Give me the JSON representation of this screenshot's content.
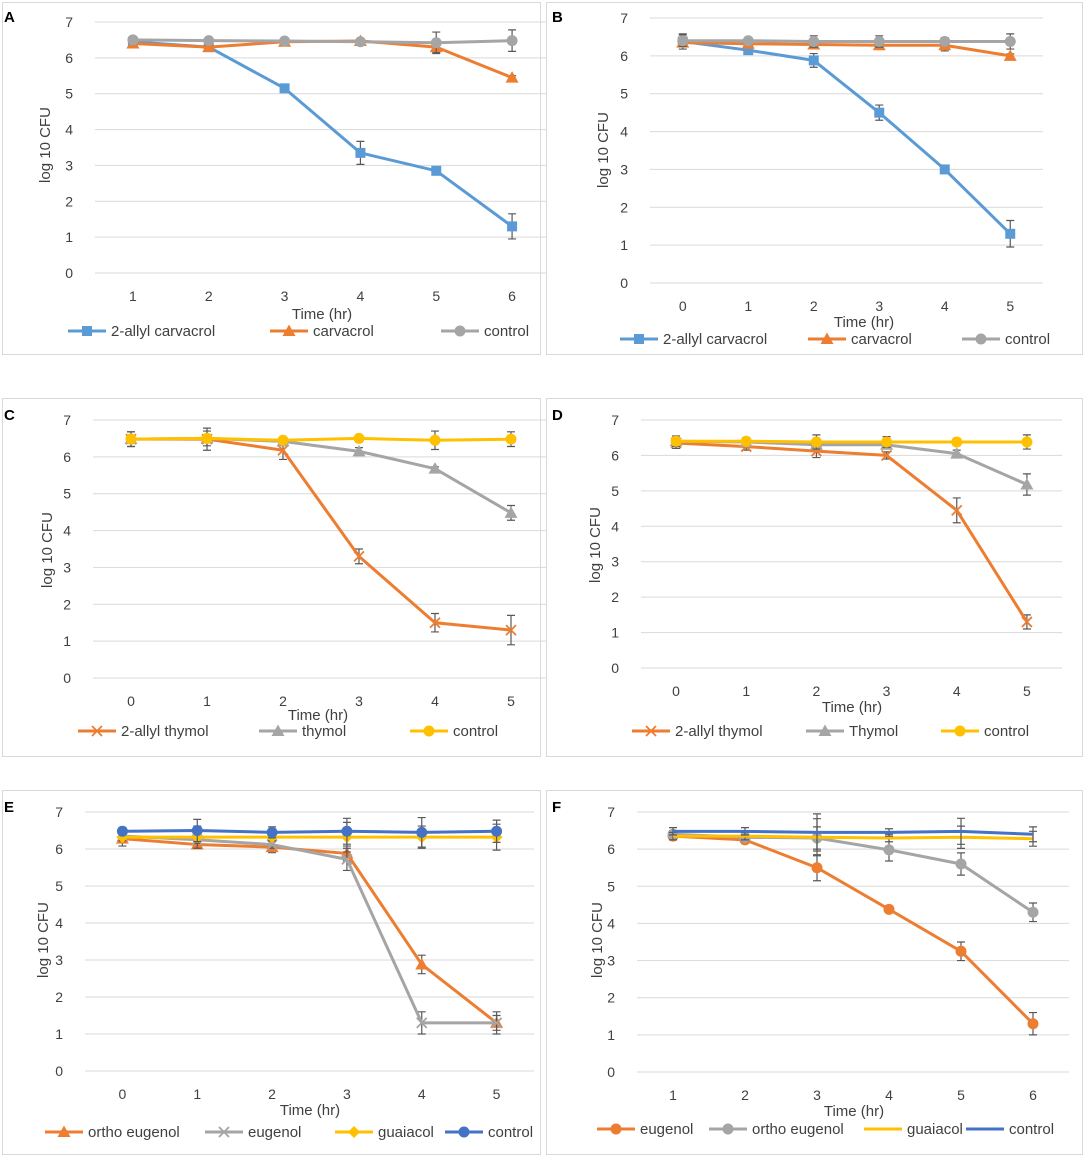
{
  "figure": {
    "panel_letters": [
      "A",
      "B",
      "C",
      "D",
      "E",
      "F"
    ]
  },
  "chart_data": [
    {
      "panel": "A",
      "type": "line",
      "xlabel": "Time (hr)",
      "ylabel": "log 10 CFU",
      "x": [
        1,
        2,
        3,
        4,
        5,
        6
      ],
      "x_tick_labels": [
        "1",
        "2",
        "3",
        "4",
        "5",
        "6"
      ],
      "ylim": [
        0,
        7
      ],
      "y_ticks": [
        0,
        1,
        2,
        3,
        4,
        5,
        6,
        7
      ],
      "grid": "horizontal",
      "legend_position": "bottom",
      "series": [
        {
          "name": "2-allyl carvacrol",
          "color": "#5B9BD5",
          "marker": "square",
          "values": [
            6.45,
            6.3,
            5.15,
            3.35,
            2.85,
            1.3
          ],
          "errors": [
            0.05,
            0.05,
            0.05,
            0.32,
            0.05,
            0.35
          ]
        },
        {
          "name": "carvacrol",
          "color": "#ED7D31",
          "marker": "triangle",
          "values": [
            6.4,
            6.3,
            6.45,
            6.47,
            6.3,
            5.45
          ],
          "errors": [
            0.05,
            0.05,
            0.05,
            0.05,
            0.15,
            0.05
          ]
        },
        {
          "name": "control",
          "color": "#A5A5A5",
          "marker": "circle",
          "values": [
            6.5,
            6.48,
            6.47,
            6.45,
            6.42,
            6.48
          ],
          "errors": [
            0.05,
            0.05,
            0.05,
            0.05,
            0.3,
            0.3
          ]
        }
      ]
    },
    {
      "panel": "B",
      "type": "line",
      "xlabel": "Time (hr)",
      "ylabel": "log 10 CFU",
      "x": [
        0,
        1,
        2,
        3,
        4,
        5
      ],
      "x_tick_labels": [
        "0",
        "1",
        "2",
        "3",
        "4",
        "5"
      ],
      "ylim": [
        0,
        7
      ],
      "y_ticks": [
        0,
        1,
        2,
        3,
        4,
        5,
        6,
        7
      ],
      "grid": "horizontal",
      "legend_position": "bottom",
      "series": [
        {
          "name": "2-allyl carvacrol",
          "color": "#5B9BD5",
          "marker": "square",
          "values": [
            6.38,
            6.15,
            5.88,
            4.5,
            3.0,
            1.3
          ],
          "errors": [
            0.2,
            0.05,
            0.18,
            0.2,
            0.1,
            0.35
          ]
        },
        {
          "name": "carvacrol",
          "color": "#ED7D31",
          "marker": "triangle",
          "values": [
            6.35,
            6.32,
            6.3,
            6.28,
            6.28,
            6.0
          ],
          "errors": [
            0.1,
            0.08,
            0.08,
            0.1,
            0.15,
            0.05
          ]
        },
        {
          "name": "control",
          "color": "#A5A5A5",
          "marker": "circle",
          "values": [
            6.4,
            6.4,
            6.38,
            6.38,
            6.38,
            6.38
          ],
          "errors": [
            0.15,
            0.08,
            0.15,
            0.15,
            0.1,
            0.2
          ]
        }
      ]
    },
    {
      "panel": "C",
      "type": "line",
      "xlabel": "Time (hr)",
      "ylabel": "log 10 CFU",
      "x": [
        0,
        1,
        2,
        3,
        4,
        5
      ],
      "x_tick_labels": [
        "0",
        "1",
        "2",
        "3",
        "4",
        "5"
      ],
      "ylim": [
        0,
        7
      ],
      "y_ticks": [
        0,
        1,
        2,
        3,
        4,
        5,
        6,
        7
      ],
      "grid": "horizontal",
      "legend_position": "bottom",
      "series": [
        {
          "name": "2-allyl thymol",
          "color": "#ED7D31",
          "marker": "x",
          "values": [
            6.48,
            6.48,
            6.18,
            3.3,
            1.5,
            1.3
          ],
          "errors": [
            0.2,
            0.3,
            0.25,
            0.2,
            0.25,
            0.4
          ]
        },
        {
          "name": "thymol",
          "color": "#A5A5A5",
          "marker": "triangle",
          "values": [
            6.48,
            6.5,
            6.42,
            6.15,
            5.68,
            4.48
          ],
          "errors": [
            0.05,
            0.05,
            0.05,
            0.1,
            0.05,
            0.2
          ]
        },
        {
          "name": "control",
          "color": "#FFC000",
          "marker": "circle",
          "values": [
            6.48,
            6.5,
            6.45,
            6.5,
            6.45,
            6.48
          ],
          "errors": [
            0.2,
            0.2,
            0.05,
            0.05,
            0.25,
            0.2
          ]
        }
      ]
    },
    {
      "panel": "D",
      "type": "line",
      "xlabel": "Time (hr)",
      "ylabel": "log 10 CFU",
      "x": [
        0,
        1,
        2,
        3,
        4,
        5
      ],
      "x_tick_labels": [
        "0",
        "1",
        "2",
        "3",
        "4",
        "5"
      ],
      "ylim": [
        0,
        7
      ],
      "y_ticks": [
        0,
        1,
        2,
        3,
        4,
        5,
        6,
        7
      ],
      "grid": "horizontal",
      "legend_position": "bottom",
      "series": [
        {
          "name": "2-allyl thymol",
          "color": "#ED7D31",
          "marker": "x",
          "values": [
            6.35,
            6.25,
            6.12,
            6.0,
            4.45,
            1.3
          ],
          "errors": [
            0.15,
            0.1,
            0.18,
            0.1,
            0.35,
            0.2
          ]
        },
        {
          "name": "Thymol",
          "color": "#A5A5A5",
          "marker": "triangle",
          "values": [
            6.4,
            6.38,
            6.3,
            6.3,
            6.05,
            5.18
          ],
          "errors": [
            0.1,
            0.1,
            0.1,
            0.1,
            0.1,
            0.3
          ]
        },
        {
          "name": "control",
          "color": "#FFC000",
          "marker": "circle",
          "values": [
            6.4,
            6.4,
            6.38,
            6.38,
            6.38,
            6.38
          ],
          "errors": [
            0.15,
            0.1,
            0.2,
            0.15,
            0.1,
            0.2
          ]
        }
      ]
    },
    {
      "panel": "E",
      "type": "line",
      "xlabel": "Time (hr)",
      "ylabel": "log 10 CFU",
      "x": [
        0,
        1,
        2,
        3,
        4,
        5
      ],
      "x_tick_labels": [
        "0",
        "1",
        "2",
        "3",
        "4",
        "5"
      ],
      "ylim": [
        0,
        7
      ],
      "y_ticks": [
        0,
        1,
        2,
        3,
        4,
        5,
        6,
        7
      ],
      "grid": "horizontal",
      "legend_position": "bottom",
      "series": [
        {
          "name": "ortho eugenol",
          "color": "#ED7D31",
          "marker": "triangle",
          "values": [
            6.28,
            6.12,
            6.05,
            5.88,
            2.88,
            1.3
          ],
          "errors": [
            0.2,
            0.1,
            0.15,
            0.2,
            0.25,
            0.2
          ]
        },
        {
          "name": "eugenol",
          "color": "#A5A5A5",
          "marker": "x",
          "values": [
            6.35,
            6.25,
            6.12,
            5.72,
            1.3,
            1.3
          ],
          "errors": [
            0.1,
            0.1,
            0.1,
            0.3,
            0.3,
            0.3
          ]
        },
        {
          "name": "guaiacol",
          "color": "#FFC000",
          "marker": "diamond",
          "values": [
            6.32,
            6.32,
            6.32,
            6.32,
            6.32,
            6.32
          ],
          "errors": [
            0.1,
            0.3,
            0.1,
            0.4,
            0.3,
            0.35
          ]
        },
        {
          "name": "control",
          "color": "#4472C4",
          "marker": "circle",
          "values": [
            6.48,
            6.5,
            6.45,
            6.48,
            6.45,
            6.48
          ],
          "errors": [
            0.1,
            0.3,
            0.15,
            0.35,
            0.4,
            0.3
          ]
        }
      ]
    },
    {
      "panel": "F",
      "type": "line",
      "xlabel": "Time (hr)",
      "ylabel": "log 10 CFU",
      "x": [
        1,
        2,
        3,
        4,
        5,
        6
      ],
      "x_tick_labels": [
        "1",
        "2",
        "3",
        "4",
        "5",
        "6"
      ],
      "ylim": [
        0,
        7
      ],
      "y_ticks": [
        0,
        1,
        2,
        3,
        4,
        5,
        6,
        7
      ],
      "grid": "horizontal",
      "legend_position": "bottom",
      "series": [
        {
          "name": "eugenol",
          "color": "#ED7D31",
          "marker": "circle",
          "values": [
            6.35,
            6.25,
            5.5,
            4.38,
            3.25,
            1.3
          ],
          "errors": [
            0.1,
            0.1,
            0.35,
            0.08,
            0.25,
            0.3
          ]
        },
        {
          "name": "ortho eugenol",
          "color": "#A5A5A5",
          "marker": "circle",
          "values": [
            6.4,
            6.32,
            6.3,
            5.98,
            5.6,
            4.3
          ],
          "errors": [
            0.1,
            0.1,
            0.3,
            0.3,
            0.3,
            0.25
          ]
        },
        {
          "name": "guaiacol",
          "color": "#FFC000",
          "marker": "none",
          "values": [
            6.35,
            6.35,
            6.32,
            6.3,
            6.32,
            6.28
          ],
          "errors": [
            0.1,
            0.1,
            0.5,
            0.1,
            0.3,
            0.2
          ]
        },
        {
          "name": "control",
          "color": "#4472C4",
          "marker": "none",
          "values": [
            6.48,
            6.48,
            6.45,
            6.45,
            6.48,
            6.4
          ],
          "errors": [
            0.1,
            0.1,
            0.5,
            0.1,
            0.35,
            0.2
          ]
        }
      ]
    }
  ]
}
